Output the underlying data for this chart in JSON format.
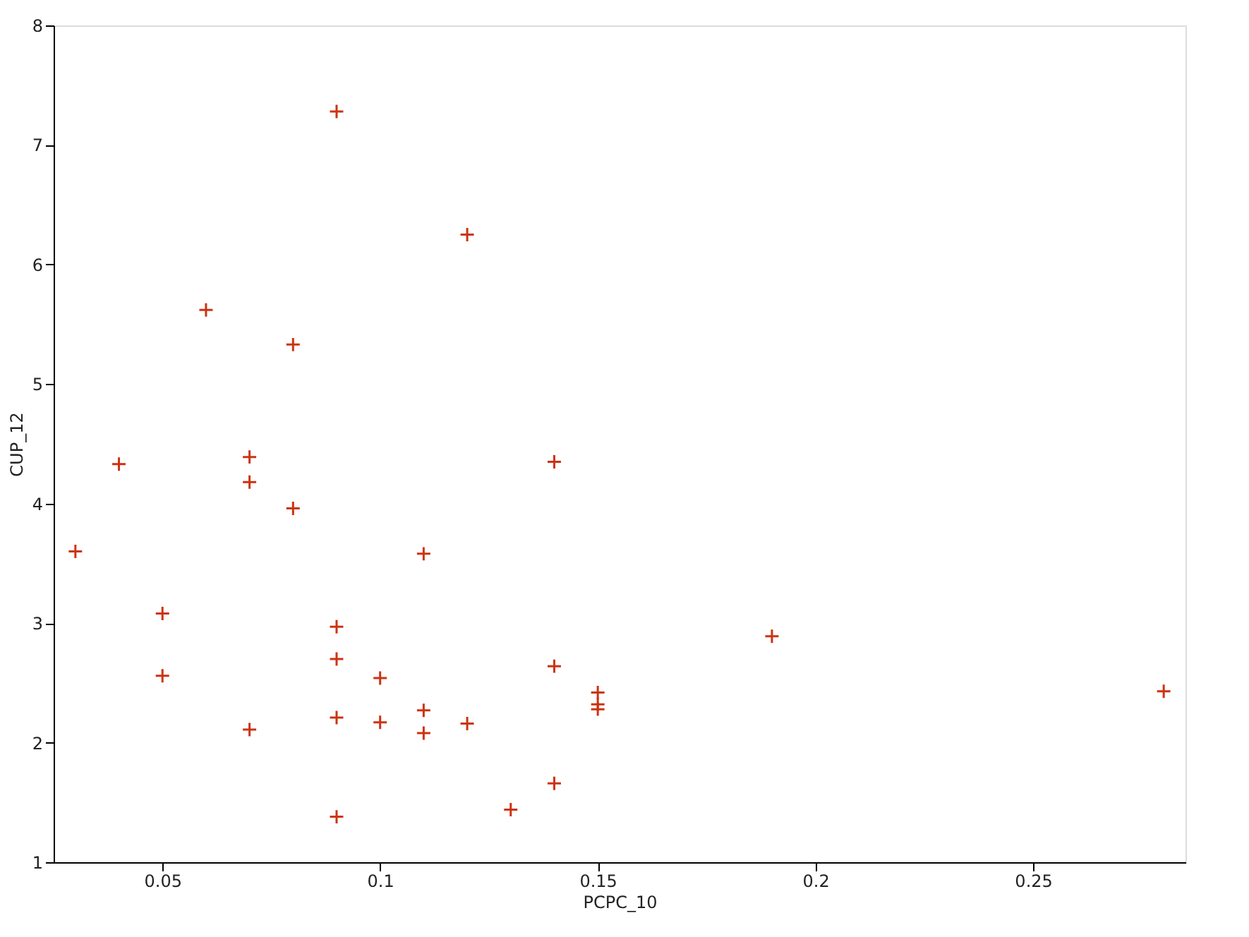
{
  "chart_data": {
    "type": "scatter",
    "xlabel": "PCPC_10",
    "ylabel": "CUP_12",
    "x": [
      0.03,
      0.04,
      0.05,
      0.05,
      0.06,
      0.07,
      0.07,
      0.07,
      0.08,
      0.08,
      0.09,
      0.09,
      0.09,
      0.09,
      0.09,
      0.1,
      0.1,
      0.11,
      0.11,
      0.11,
      0.12,
      0.12,
      0.13,
      0.14,
      0.14,
      0.14,
      0.15,
      0.15,
      0.15,
      0.19,
      0.28
    ],
    "series": [
      {
        "color": "#cc3311",
        "values": [
          3.6,
          4.33,
          3.08,
          2.56,
          5.62,
          4.39,
          4.18,
          2.11,
          5.33,
          3.96,
          7.28,
          2.97,
          2.7,
          2.21,
          1.38,
          2.54,
          2.17,
          3.58,
          2.27,
          2.08,
          6.25,
          2.16,
          1.44,
          4.35,
          2.64,
          1.66,
          2.42,
          2.32,
          2.28,
          2.89,
          2.43
        ]
      }
    ],
    "xlim": [
      0.025,
      0.285
    ],
    "xticks": [
      0.05,
      0.1,
      0.15,
      0.2,
      0.25
    ],
    "ylim": [
      1,
      8
    ],
    "yticks": [
      1,
      2,
      3,
      4,
      5,
      6,
      7,
      8
    ],
    "grid": false,
    "marker": "cross"
  }
}
